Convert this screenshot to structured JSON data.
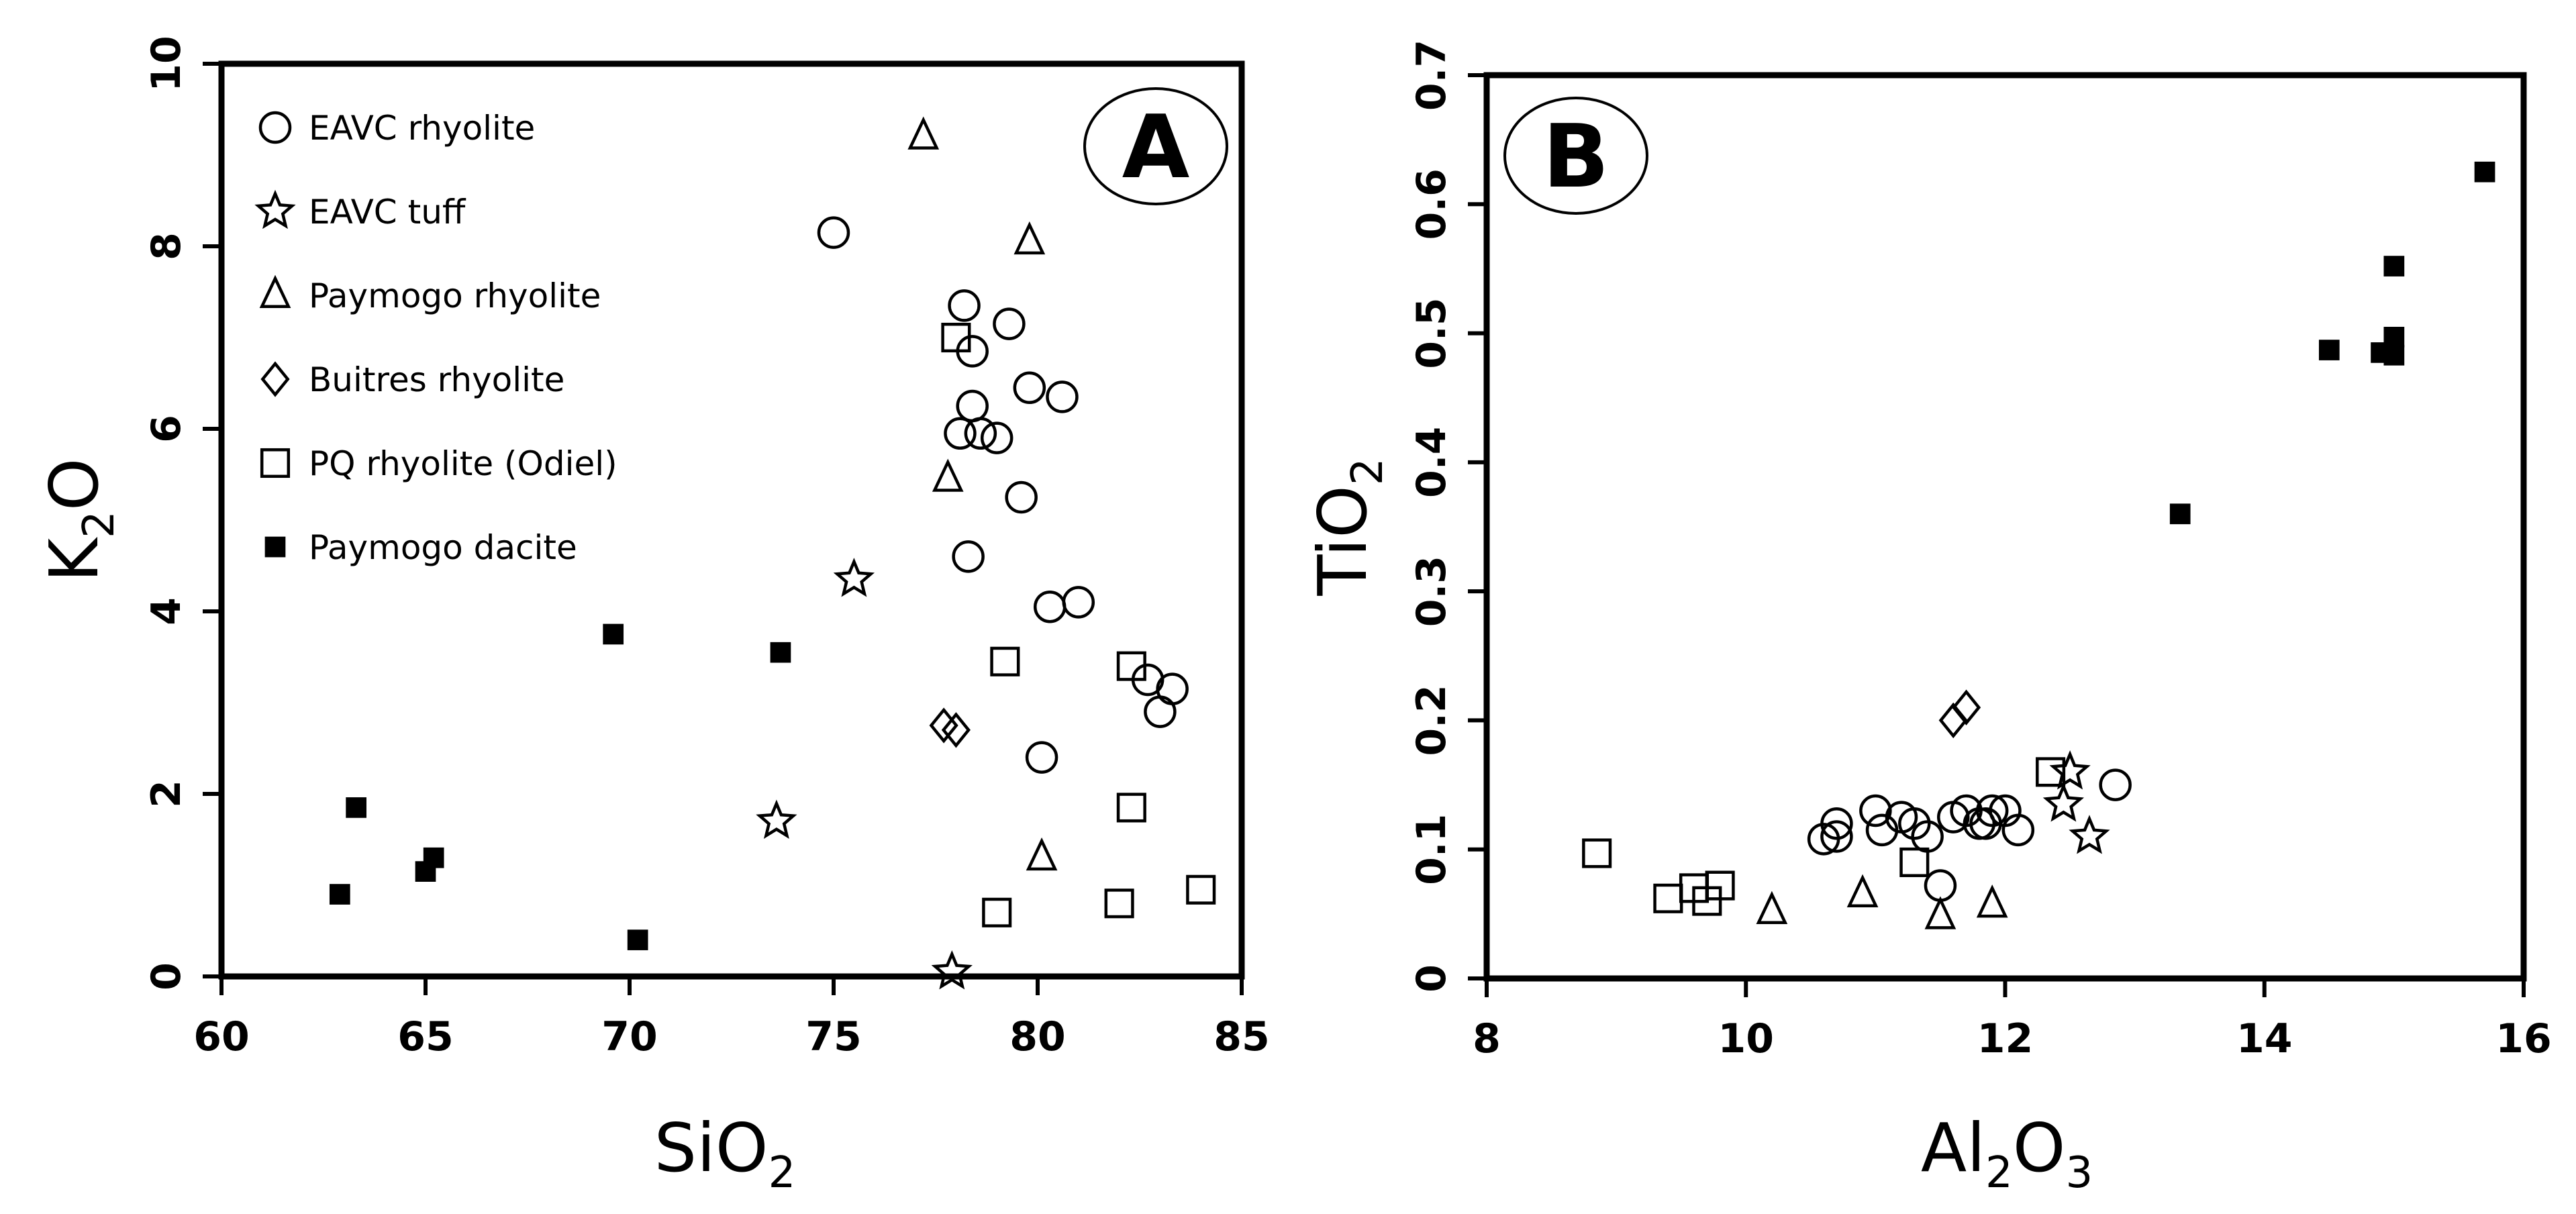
{
  "chart_data": [
    {
      "panel": "A",
      "type": "scatter",
      "xlabel": {
        "main": "SiO",
        "sub": "2"
      },
      "ylabel": {
        "main": "K",
        "sub": "2",
        "after": "O"
      },
      "xlim": [
        60,
        85
      ],
      "ylim": [
        0,
        10
      ],
      "xticks": [
        "60",
        "65",
        "70",
        "75",
        "80",
        "85"
      ],
      "yticks": [
        "0",
        "2",
        "4",
        "6",
        "8",
        "10"
      ],
      "legend_position": "top-left",
      "legend": [
        "EAVC rhyolite",
        "EAVC tuff",
        "Paymogo rhyolite",
        "Buitres rhyolite",
        "PQ rhyolite (Odiel)",
        "Paymogo dacite"
      ],
      "series": [
        {
          "name": "EAVC rhyolite",
          "marker": "circle",
          "points": [
            [
              75.0,
              8.15
            ],
            [
              78.2,
              7.35
            ],
            [
              79.3,
              7.15
            ],
            [
              78.4,
              6.85
            ],
            [
              79.8,
              6.45
            ],
            [
              80.6,
              6.35
            ],
            [
              78.4,
              6.25
            ],
            [
              78.1,
              5.95
            ],
            [
              78.6,
              5.95
            ],
            [
              79.0,
              5.9
            ],
            [
              79.6,
              5.25
            ],
            [
              78.3,
              4.6
            ],
            [
              80.3,
              4.05
            ],
            [
              81.0,
              4.1
            ],
            [
              82.7,
              3.25
            ],
            [
              83.3,
              3.15
            ],
            [
              83.0,
              2.9
            ],
            [
              80.1,
              2.4
            ]
          ]
        },
        {
          "name": "EAVC tuff",
          "marker": "star",
          "points": [
            [
              75.5,
              4.35
            ],
            [
              73.6,
              1.7
            ],
            [
              77.9,
              0.05
            ]
          ]
        },
        {
          "name": "Paymogo rhyolite",
          "marker": "triangle",
          "points": [
            [
              77.2,
              9.2
            ],
            [
              79.8,
              8.05
            ],
            [
              77.8,
              5.45
            ],
            [
              80.1,
              1.3
            ]
          ]
        },
        {
          "name": "Buitres rhyolite",
          "marker": "diamond",
          "points": [
            [
              77.7,
              2.75
            ],
            [
              78.0,
              2.7
            ]
          ]
        },
        {
          "name": "PQ rhyolite (Odiel)",
          "marker": "square",
          "points": [
            [
              78.0,
              7.0
            ],
            [
              79.2,
              3.45
            ],
            [
              82.3,
              3.4
            ],
            [
              82.3,
              1.85
            ],
            [
              79.0,
              0.7
            ],
            [
              82.0,
              0.8
            ],
            [
              84.0,
              0.95
            ]
          ]
        },
        {
          "name": "Paymogo dacite",
          "marker": "filled-square",
          "points": [
            [
              69.6,
              3.75
            ],
            [
              73.7,
              3.55
            ],
            [
              63.3,
              1.85
            ],
            [
              65.2,
              1.3
            ],
            [
              65.0,
              1.15
            ],
            [
              62.9,
              0.9
            ],
            [
              70.2,
              0.4
            ]
          ]
        }
      ]
    },
    {
      "panel": "B",
      "type": "scatter",
      "xlabel": {
        "main": "Al",
        "sub1": "2",
        "mid": "O",
        "sub2": "3"
      },
      "ylabel": {
        "main": "TiO",
        "sub": "2"
      },
      "xlim": [
        8,
        16
      ],
      "ylim": [
        0,
        0.7
      ],
      "xticks": [
        "8",
        "10",
        "12",
        "14",
        "16"
      ],
      "yticks": [
        "0",
        "0.1",
        "0.2",
        "0.3",
        "0.4",
        "0.5",
        "0.6",
        "0.7"
      ],
      "series": [
        {
          "name": "EAVC rhyolite",
          "marker": "circle",
          "points": [
            [
              10.6,
              0.108
            ],
            [
              10.7,
              0.11
            ],
            [
              10.7,
              0.12
            ],
            [
              11.0,
              0.13
            ],
            [
              11.05,
              0.115
            ],
            [
              11.2,
              0.125
            ],
            [
              11.3,
              0.12
            ],
            [
              11.4,
              0.11
            ],
            [
              11.5,
              0.072
            ],
            [
              11.6,
              0.125
            ],
            [
              11.7,
              0.13
            ],
            [
              11.8,
              0.12
            ],
            [
              11.9,
              0.13
            ],
            [
              12.0,
              0.13
            ],
            [
              12.1,
              0.115
            ],
            [
              11.85,
              0.12
            ],
            [
              12.85,
              0.15
            ]
          ]
        },
        {
          "name": "EAVC tuff",
          "marker": "star",
          "points": [
            [
              12.45,
              0.135
            ],
            [
              12.5,
              0.16
            ],
            [
              12.65,
              0.11
            ]
          ]
        },
        {
          "name": "Paymogo rhyolite",
          "marker": "triangle",
          "points": [
            [
              10.2,
              0.052
            ],
            [
              10.9,
              0.065
            ],
            [
              11.5,
              0.048
            ],
            [
              11.9,
              0.057
            ]
          ]
        },
        {
          "name": "Buitres rhyolite",
          "marker": "diamond",
          "points": [
            [
              11.6,
              0.2
            ],
            [
              11.7,
              0.21
            ]
          ]
        },
        {
          "name": "PQ rhyolite (Odiel)",
          "marker": "square",
          "points": [
            [
              8.85,
              0.097
            ],
            [
              9.4,
              0.062
            ],
            [
              9.6,
              0.07
            ],
            [
              9.7,
              0.06
            ],
            [
              9.8,
              0.072
            ],
            [
              11.3,
              0.09
            ],
            [
              12.35,
              0.16
            ]
          ]
        },
        {
          "name": "Paymogo dacite",
          "marker": "filled-square",
          "points": [
            [
              13.35,
              0.36
            ],
            [
              14.5,
              0.487
            ],
            [
              14.9,
              0.485
            ],
            [
              15.0,
              0.483
            ],
            [
              15.0,
              0.497
            ],
            [
              15.0,
              0.552
            ],
            [
              15.7,
              0.625
            ]
          ]
        }
      ]
    }
  ]
}
